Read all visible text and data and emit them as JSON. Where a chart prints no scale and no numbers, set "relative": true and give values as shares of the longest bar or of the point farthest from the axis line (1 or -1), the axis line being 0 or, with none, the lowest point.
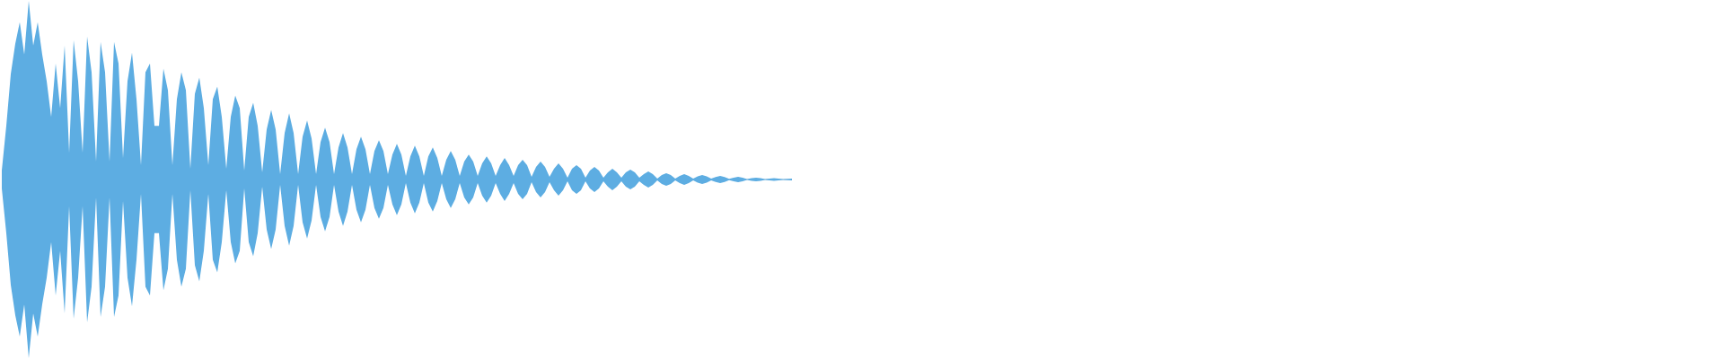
{
  "chart_data": {
    "type": "area",
    "relative": true,
    "categories": [
      null,
      null,
      null,
      null,
      null,
      null,
      null,
      null,
      null,
      null,
      null,
      null,
      null,
      null,
      null,
      null,
      null,
      null,
      null,
      null,
      null,
      null,
      null,
      null,
      null,
      null,
      null,
      null,
      null,
      null,
      null,
      null,
      null,
      null,
      null,
      null,
      null,
      null,
      null,
      null,
      null,
      null,
      null,
      null,
      null,
      null,
      null,
      null,
      null,
      null,
      null,
      null,
      null,
      null,
      null,
      null,
      null,
      null,
      null,
      null,
      null,
      null,
      null,
      null,
      null,
      null,
      null,
      null,
      null,
      null,
      null,
      null,
      null,
      null,
      null,
      null,
      null,
      null,
      null,
      null,
      null,
      null,
      null,
      null,
      null,
      null,
      null,
      null,
      null,
      null,
      null,
      null,
      null,
      null,
      null,
      null,
      null,
      null,
      null,
      null,
      null,
      null,
      null,
      null,
      null,
      null,
      null,
      null,
      null,
      null,
      null,
      null,
      null,
      null,
      null,
      null,
      null,
      null,
      null,
      null,
      null,
      null,
      null,
      null,
      null,
      null,
      null,
      null,
      null,
      null,
      null,
      null,
      null,
      null,
      null,
      null,
      null,
      null,
      null,
      null,
      null,
      null,
      null,
      null,
      null,
      null,
      null,
      null,
      null,
      null,
      null,
      null,
      null,
      null,
      null,
      null,
      null,
      null,
      null,
      null,
      null,
      null,
      null,
      null,
      null,
      null,
      null,
      null,
      null,
      null,
      null,
      null,
      null,
      null,
      null,
      null,
      null
    ],
    "series": [
      {
        "color": "#5dade2",
        "values": [
          0.05,
          0.3,
          0.59,
          0.76,
          0.88,
          0.7,
          1.0,
          0.75,
          0.88,
          0.7,
          0.55,
          0.35,
          0.65,
          0.4,
          0.75,
          0.15,
          0.78,
          0.55,
          0.15,
          0.8,
          0.6,
          0.1,
          0.77,
          0.6,
          0.1,
          0.77,
          0.65,
          0.12,
          0.55,
          0.71,
          0.45,
          0.08,
          0.6,
          0.65,
          0.3,
          0.3,
          0.62,
          0.5,
          0.08,
          0.45,
          0.6,
          0.5,
          0.06,
          0.48,
          0.57,
          0.4,
          0.08,
          0.45,
          0.52,
          0.35,
          0.06,
          0.35,
          0.47,
          0.4,
          0.05,
          0.35,
          0.43,
          0.3,
          0.04,
          0.28,
          0.39,
          0.28,
          0.03,
          0.26,
          0.37,
          0.26,
          0.03,
          0.24,
          0.33,
          0.23,
          0.03,
          0.21,
          0.29,
          0.21,
          0.03,
          0.18,
          0.26,
          0.18,
          0.03,
          0.17,
          0.24,
          0.17,
          0.03,
          0.16,
          0.22,
          0.16,
          0.03,
          0.14,
          0.2,
          0.14,
          0.02,
          0.13,
          0.19,
          0.13,
          0.02,
          0.13,
          0.18,
          0.12,
          0.02,
          0.11,
          0.16,
          0.11,
          0.02,
          0.1,
          0.14,
          0.1,
          0.02,
          0.09,
          0.13,
          0.09,
          0.02,
          0.08,
          0.12,
          0.08,
          0.02,
          0.08,
          0.11,
          0.08,
          0.015,
          0.07,
          0.1,
          0.07,
          0.015,
          0.06,
          0.09,
          0.06,
          0.01,
          0.06,
          0.08,
          0.06,
          0.01,
          0.05,
          0.07,
          0.05,
          0.01,
          0.04,
          0.06,
          0.04,
          0.01,
          0.04,
          0.055,
          0.04,
          0.01,
          0.03,
          0.045,
          0.03,
          0.005,
          0.025,
          0.035,
          0.025,
          0.005,
          0.02,
          0.03,
          0.02,
          0.005,
          0.018,
          0.025,
          0.018,
          0.005,
          0.014,
          0.02,
          0.014,
          0.004,
          0.01,
          0.015,
          0.01,
          0.003,
          0.007,
          0.01,
          0.007,
          0.003,
          0.005,
          0.007,
          0.005,
          0.003,
          0.004,
          0.005
        ]
      },
      {
        "color": "#5dade2",
        "values": [
          -0.05,
          -0.3,
          -0.59,
          -0.76,
          -0.88,
          -0.7,
          -1.0,
          -0.75,
          -0.88,
          -0.7,
          -0.55,
          -0.35,
          -0.65,
          -0.4,
          -0.75,
          -0.15,
          -0.78,
          -0.55,
          -0.15,
          -0.8,
          -0.6,
          -0.1,
          -0.77,
          -0.6,
          -0.1,
          -0.77,
          -0.65,
          -0.12,
          -0.55,
          -0.71,
          -0.45,
          -0.08,
          -0.6,
          -0.65,
          -0.3,
          -0.3,
          -0.62,
          -0.5,
          -0.08,
          -0.45,
          -0.6,
          -0.5,
          -0.06,
          -0.48,
          -0.57,
          -0.4,
          -0.08,
          -0.45,
          -0.52,
          -0.35,
          -0.06,
          -0.35,
          -0.47,
          -0.4,
          -0.05,
          -0.35,
          -0.43,
          -0.3,
          -0.04,
          -0.28,
          -0.39,
          -0.28,
          -0.03,
          -0.26,
          -0.37,
          -0.26,
          -0.03,
          -0.24,
          -0.33,
          -0.23,
          -0.03,
          -0.21,
          -0.29,
          -0.21,
          -0.03,
          -0.18,
          -0.26,
          -0.18,
          -0.03,
          -0.17,
          -0.24,
          -0.17,
          -0.03,
          -0.16,
          -0.22,
          -0.16,
          -0.03,
          -0.14,
          -0.2,
          -0.14,
          -0.02,
          -0.13,
          -0.19,
          -0.13,
          -0.02,
          -0.13,
          -0.18,
          -0.12,
          -0.02,
          -0.11,
          -0.16,
          -0.11,
          -0.02,
          -0.1,
          -0.14,
          -0.1,
          -0.02,
          -0.09,
          -0.13,
          -0.09,
          -0.02,
          -0.08,
          -0.12,
          -0.08,
          -0.02,
          -0.08,
          -0.11,
          -0.08,
          -0.015,
          -0.07,
          -0.1,
          -0.07,
          -0.015,
          -0.06,
          -0.09,
          -0.06,
          -0.01,
          -0.06,
          -0.08,
          -0.06,
          -0.01,
          -0.05,
          -0.07,
          -0.05,
          -0.01,
          -0.04,
          -0.06,
          -0.04,
          -0.01,
          -0.04,
          -0.055,
          -0.04,
          -0.01,
          -0.03,
          -0.045,
          -0.03,
          -0.005,
          -0.025,
          -0.035,
          -0.025,
          -0.005,
          -0.02,
          -0.03,
          -0.02,
          -0.005,
          -0.018,
          -0.025,
          -0.018,
          -0.005,
          -0.014,
          -0.02,
          -0.014,
          -0.004,
          -0.01,
          -0.015,
          -0.01,
          -0.003,
          -0.007,
          -0.01,
          -0.007,
          -0.003,
          -0.005,
          -0.007,
          -0.005,
          -0.003,
          -0.004,
          -0.005
        ]
      }
    ]
  }
}
